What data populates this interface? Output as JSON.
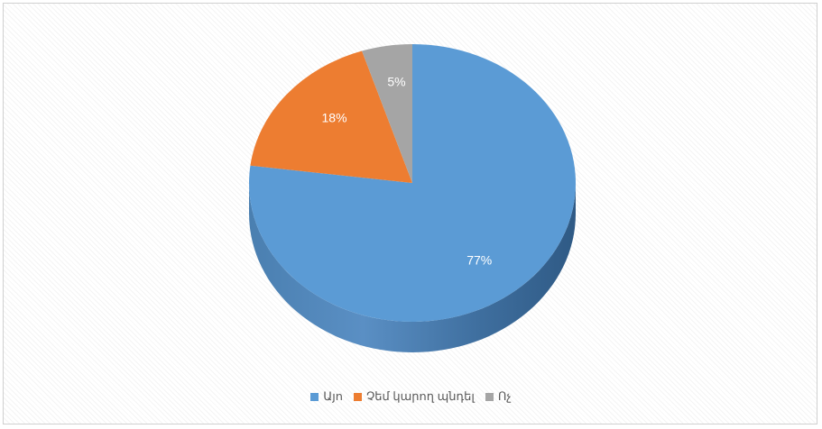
{
  "chart_data": {
    "type": "pie",
    "style": "3d",
    "title": "",
    "legend_position": "bottom",
    "slices": [
      {
        "name": "Այո",
        "value": 77,
        "label": "77%",
        "color": "#5b9bd5"
      },
      {
        "name": "Չեմ կարող պնդել",
        "value": 18,
        "label": "18%",
        "color": "#ed7d31"
      },
      {
        "name": "Ոչ",
        "value": 5,
        "label": "5%",
        "color": "#a5a5a5"
      }
    ]
  }
}
